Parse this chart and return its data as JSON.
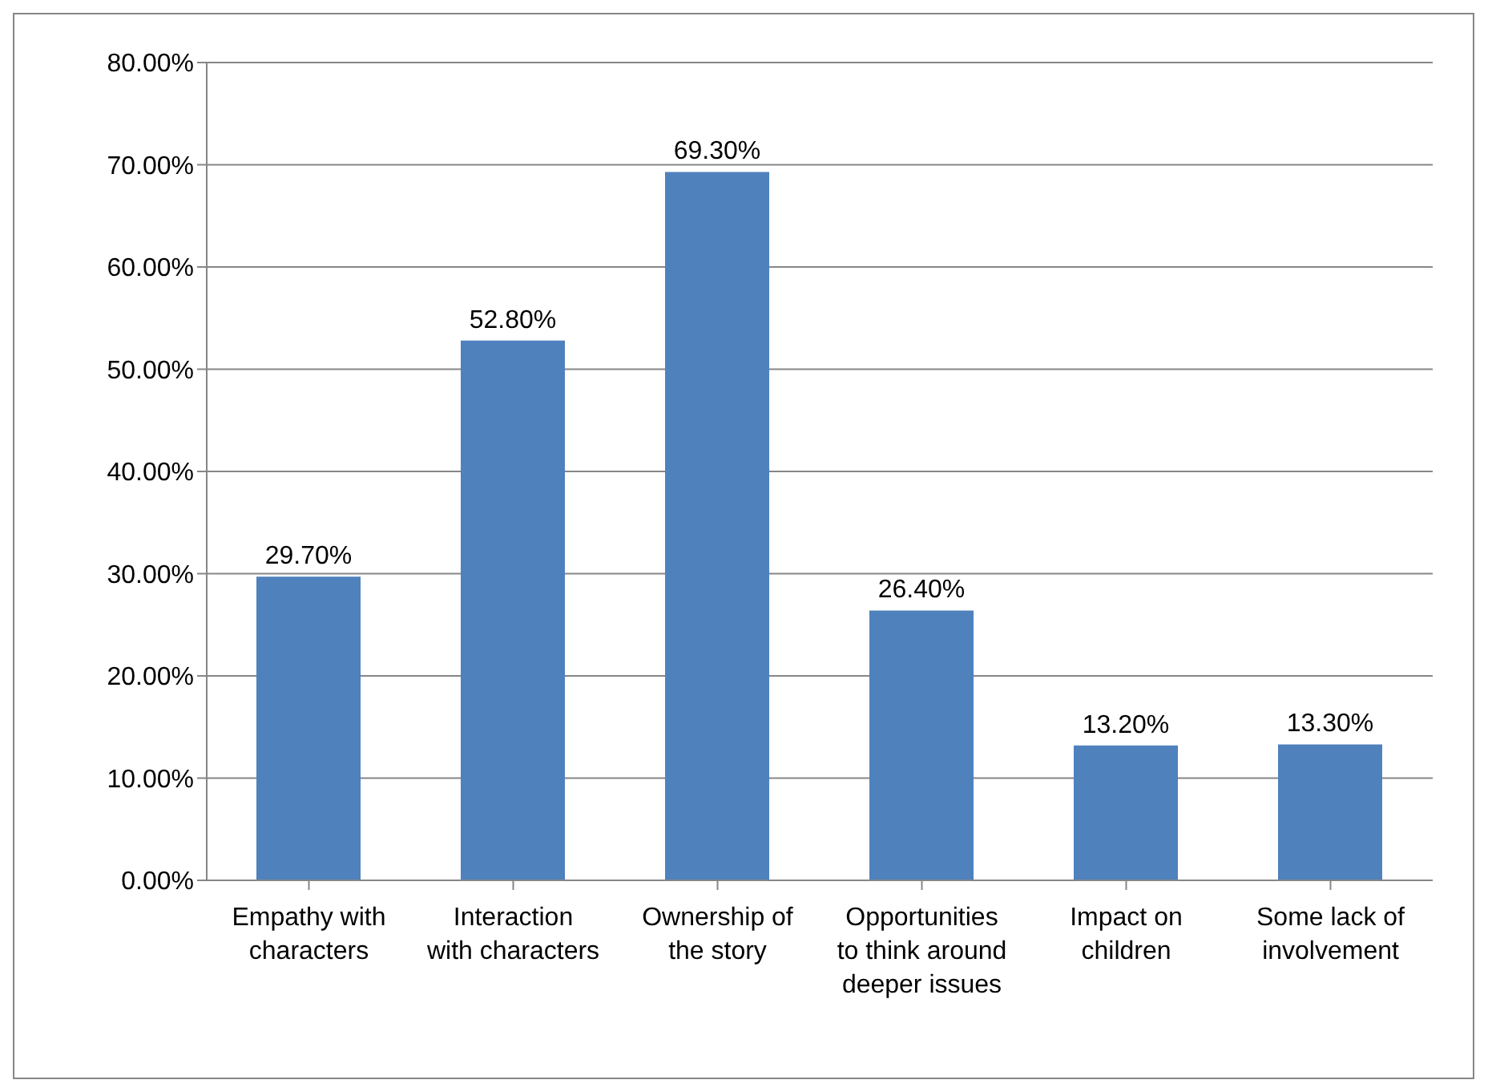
{
  "chart_data": {
    "type": "bar",
    "categories": [
      "Empathy with characters",
      "Interaction with characters",
      "Ownership of the story",
      "Opportunities to think around deeper issues",
      "Impact on children",
      "Some lack of involvement"
    ],
    "values": [
      29.7,
      52.8,
      69.3,
      26.4,
      13.2,
      13.3
    ],
    "value_labels": [
      "29.70%",
      "52.80%",
      "69.30%",
      "26.40%",
      "13.20%",
      "13.30%"
    ],
    "color": "#4f81bd",
    "ylim": [
      0,
      80
    ],
    "yticks": [
      {
        "value": 0,
        "label": "0.00%"
      },
      {
        "value": 10,
        "label": "10.00%"
      },
      {
        "value": 20,
        "label": "20.00%"
      },
      {
        "value": 30,
        "label": "30.00%"
      },
      {
        "value": 40,
        "label": "40.00%"
      },
      {
        "value": 50,
        "label": "50.00%"
      },
      {
        "value": 60,
        "label": "60.00%"
      },
      {
        "value": 70,
        "label": "70.00%"
      },
      {
        "value": 80,
        "label": "80.00%"
      }
    ],
    "grid": "y"
  }
}
